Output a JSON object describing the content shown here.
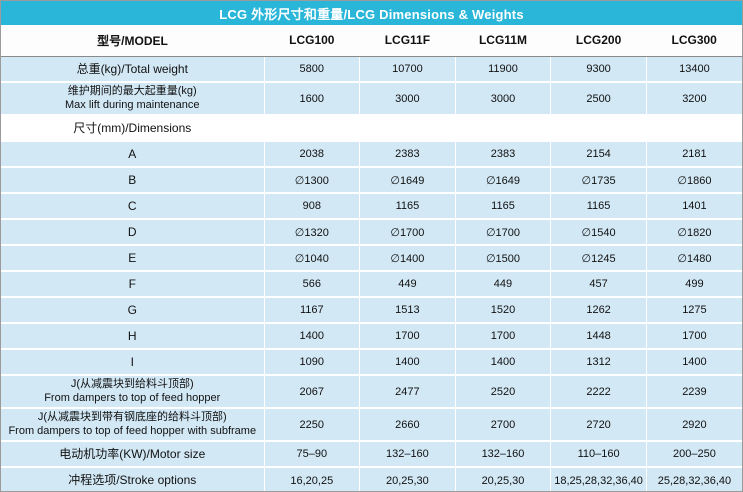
{
  "title": "LCG 外形尺寸和重量/LCG Dimensions & Weights",
  "colors": {
    "accent": "#29b6d8",
    "row_blue": "#d2e8f5"
  },
  "table": {
    "columns": [
      "型号/MODEL",
      "LCG100",
      "LCG11F",
      "LCG11M",
      "LCG200",
      "LCG300"
    ],
    "rows": [
      {
        "label": "总重(kg)/Total weight",
        "values": [
          "5800",
          "10700",
          "11900",
          "9300",
          "13400"
        ]
      },
      {
        "label": "维护期间的最大起重量(kg)\nMax lift during maintenance",
        "values": [
          "1600",
          "3000",
          "3000",
          "2500",
          "3200"
        ]
      },
      {
        "label": "尺寸(mm)/Dimensions",
        "values": [
          "",
          "",
          "",
          "",
          ""
        ],
        "section": true
      },
      {
        "label": "A",
        "values": [
          "2038",
          "2383",
          "2383",
          "2154",
          "2181"
        ]
      },
      {
        "label": "B",
        "values": [
          "∅1300",
          "∅1649",
          "∅1649",
          "∅1735",
          "∅1860"
        ]
      },
      {
        "label": "C",
        "values": [
          "908",
          "1165",
          "1165",
          "1165",
          "1401"
        ]
      },
      {
        "label": "D",
        "values": [
          "∅1320",
          "∅1700",
          "∅1700",
          "∅1540",
          "∅1820"
        ]
      },
      {
        "label": "E",
        "values": [
          "∅1040",
          "∅1400",
          "∅1500",
          "∅1245",
          "∅1480"
        ]
      },
      {
        "label": "F",
        "values": [
          "566",
          "449",
          "449",
          "457",
          "499"
        ]
      },
      {
        "label": "G",
        "values": [
          "1167",
          "1513",
          "1520",
          "1262",
          "1275"
        ]
      },
      {
        "label": "H",
        "values": [
          "1400",
          "1700",
          "1700",
          "1448",
          "1700"
        ]
      },
      {
        "label": "I",
        "values": [
          "1090",
          "1400",
          "1400",
          "1312",
          "1400"
        ]
      },
      {
        "label": "J(从减震块到给料斗顶部)\nFrom dampers to top of feed hopper",
        "values": [
          "2067",
          "2477",
          "2520",
          "2222",
          "2239"
        ]
      },
      {
        "label": "J(从减震块到带有钢底座的给料斗顶部)\nFrom dampers to top of feed hopper with subframe",
        "values": [
          "2250",
          "2660",
          "2700",
          "2720",
          "2920"
        ]
      },
      {
        "label": "电动机功率(KW)/Motor size",
        "values": [
          "75–90",
          "132–160",
          "132–160",
          "110–160",
          "200–250"
        ]
      },
      {
        "label": "冲程选项/Stroke options",
        "values": [
          "16,20,25",
          "20,25,30",
          "20,25,30",
          "18,25,28,32,36,40",
          "25,28,32,36,40"
        ]
      }
    ]
  }
}
